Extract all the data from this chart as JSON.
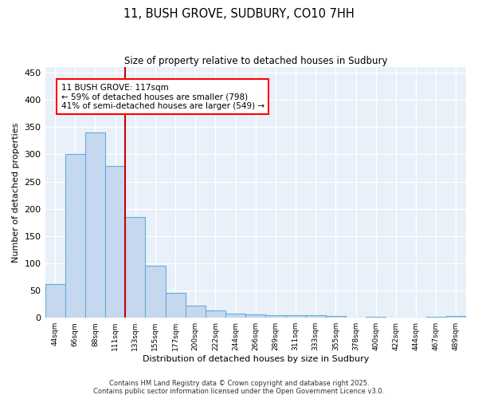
{
  "title": "11, BUSH GROVE, SUDBURY, CO10 7HH",
  "subtitle": "Size of property relative to detached houses in Sudbury",
  "xlabel": "Distribution of detached houses by size in Sudbury",
  "ylabel": "Number of detached properties",
  "bar_color": "#c5d8f0",
  "bar_edge_color": "#6aaad4",
  "background_color": "#e8f0fa",
  "grid_color": "#ffffff",
  "categories": [
    "44sqm",
    "66sqm",
    "88sqm",
    "111sqm",
    "133sqm",
    "155sqm",
    "177sqm",
    "200sqm",
    "222sqm",
    "244sqm",
    "266sqm",
    "289sqm",
    "311sqm",
    "333sqm",
    "355sqm",
    "378sqm",
    "400sqm",
    "422sqm",
    "444sqm",
    "467sqm",
    "489sqm"
  ],
  "values": [
    62,
    300,
    340,
    278,
    185,
    95,
    45,
    23,
    13,
    7,
    6,
    5,
    4,
    4,
    3,
    0,
    2,
    0,
    0,
    2,
    3
  ],
  "red_line_index": 3.5,
  "annotation_text": "11 BUSH GROVE: 117sqm\n← 59% of detached houses are smaller (798)\n41% of semi-detached houses are larger (549) →",
  "ylim": [
    0,
    460
  ],
  "yticks": [
    0,
    50,
    100,
    150,
    200,
    250,
    300,
    350,
    400,
    450
  ],
  "footer_line1": "Contains HM Land Registry data © Crown copyright and database right 2025.",
  "footer_line2": "Contains public sector information licensed under the Open Government Licence v3.0."
}
